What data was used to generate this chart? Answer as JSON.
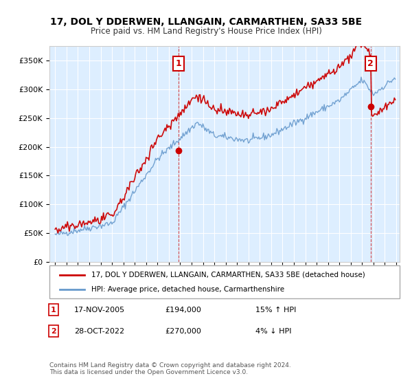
{
  "title": "17, DOL Y DDERWEN, LLANGAIN, CARMARTHEN, SA33 5BE",
  "subtitle": "Price paid vs. HM Land Registry's House Price Index (HPI)",
  "legend_line1": "17, DOL Y DDERWEN, LLANGAIN, CARMARTHEN, SA33 5BE (detached house)",
  "legend_line2": "HPI: Average price, detached house, Carmarthenshire",
  "sale1_date": "17-NOV-2005",
  "sale1_price": 194000,
  "sale1_hpi": "15% ↑ HPI",
  "sale1_label": "1",
  "sale2_date": "28-OCT-2022",
  "sale2_price": 270000,
  "sale2_hpi": "4% ↓ HPI",
  "sale2_label": "2",
  "footer": "Contains HM Land Registry data © Crown copyright and database right 2024.\nThis data is licensed under the Open Government Licence v3.0.",
  "price_color": "#cc0000",
  "hpi_color": "#6699cc",
  "bg_color": "#ddeeff",
  "plot_bg": "#ddeeff",
  "ylim": [
    0,
    375000
  ],
  "yticks": [
    0,
    50000,
    100000,
    150000,
    200000,
    250000,
    300000,
    350000
  ],
  "start_year": 1995,
  "end_year": 2025
}
